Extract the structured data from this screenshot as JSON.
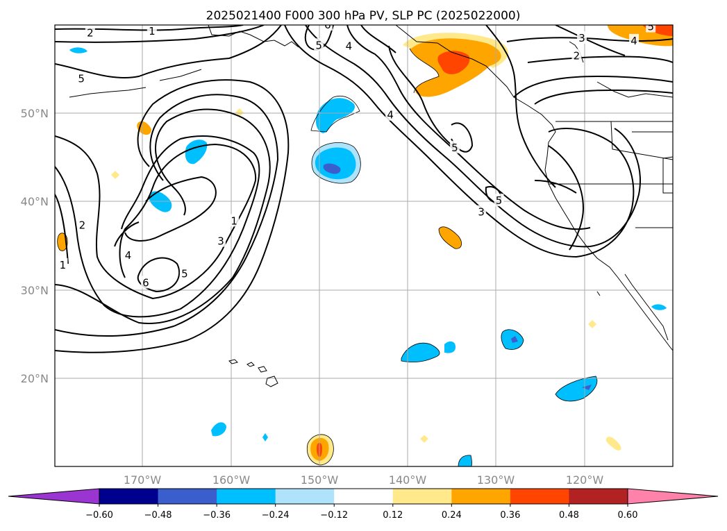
{
  "chart_data": {
    "type": "heatmap",
    "title": "2025021400 F000 300 hPa PV, SLP PC (2025022000)",
    "map": {
      "lon_range": [
        -180,
        -110
      ],
      "lat_range": [
        10,
        60
      ],
      "gridlines": true,
      "x_ticks": [
        {
          "lon": -170,
          "label": "170°W"
        },
        {
          "lon": -160,
          "label": "160°W"
        },
        {
          "lon": -150,
          "label": "150°W"
        },
        {
          "lon": -140,
          "label": "140°W"
        },
        {
          "lon": -130,
          "label": "130°W"
        },
        {
          "lon": -120,
          "label": "120°W"
        }
      ],
      "y_ticks": [
        {
          "lat": 20,
          "label": "20°N"
        },
        {
          "lat": 30,
          "label": "30°N"
        },
        {
          "lat": 40,
          "label": "40°N"
        },
        {
          "lat": 50,
          "label": "50°N"
        }
      ]
    },
    "colorbar": {
      "orientation": "horizontal",
      "extend": "both",
      "levels": [
        -0.6,
        -0.48,
        -0.36,
        -0.24,
        -0.12,
        0.12,
        0.24,
        0.36,
        0.48,
        0.6
      ],
      "tick_labels": [
        "−0.60",
        "−0.48",
        "−0.36",
        "−0.24",
        "−0.12",
        "0.12",
        "0.24",
        "0.36",
        "0.48",
        "0.60"
      ],
      "colors": [
        "#9a35d1",
        "#00008f",
        "#3a5fcd",
        "#00bfff",
        "#aee3fb",
        "#ffffff",
        "#ffe98a",
        "#ffa500",
        "#ff4500",
        "#b22222",
        "#ff82ab"
      ]
    },
    "slp_contour_labels": [
      {
        "text": "2",
        "lon": -176.0,
        "lat": 59.1
      },
      {
        "text": "1",
        "lon": -169.0,
        "lat": 59.3
      },
      {
        "text": "5",
        "lon": -177.0,
        "lat": 53.9
      },
      {
        "text": "2",
        "lon": -176.9,
        "lat": 37.3
      },
      {
        "text": "1",
        "lon": -179.1,
        "lat": 32.8
      },
      {
        "text": "4",
        "lon": -171.7,
        "lat": 33.9
      },
      {
        "text": "6",
        "lon": -169.7,
        "lat": 30.8
      },
      {
        "text": "5",
        "lon": -165.3,
        "lat": 31.8
      },
      {
        "text": "3",
        "lon": -161.2,
        "lat": 35.5
      },
      {
        "text": "1",
        "lon": -159.7,
        "lat": 37.8
      },
      {
        "text": "6",
        "lon": -149.1,
        "lat": 60.0
      },
      {
        "text": "5",
        "lon": -150.1,
        "lat": 57.7
      },
      {
        "text": "4",
        "lon": -146.7,
        "lat": 57.6
      },
      {
        "text": "4",
        "lon": -142.0,
        "lat": 49.8
      },
      {
        "text": "5",
        "lon": -134.7,
        "lat": 46.1
      },
      {
        "text": "3",
        "lon": -131.7,
        "lat": 38.8
      },
      {
        "text": "5",
        "lon": -129.7,
        "lat": 40.1
      },
      {
        "text": "3",
        "lon": -120.3,
        "lat": 58.5
      },
      {
        "text": "2",
        "lon": -120.9,
        "lat": 56.5
      },
      {
        "text": "4",
        "lon": -114.4,
        "lat": 58.2
      },
      {
        "text": "5",
        "lon": -112.5,
        "lat": 59.8
      }
    ],
    "pv_anomaly_patches": [
      {
        "sign": "positive",
        "peak": 0.42,
        "lon": -150.1,
        "lat": 12.0
      },
      {
        "sign": "positive",
        "peak": 0.4,
        "lon": -128.2,
        "lat": 55.5
      },
      {
        "sign": "positive",
        "peak": 0.28,
        "lon": -135.7,
        "lat": 34.6
      },
      {
        "sign": "positive",
        "peak": 0.28,
        "lon": -169.6,
        "lat": 48.6
      },
      {
        "sign": "positive",
        "peak": 0.38,
        "lon": -179.1,
        "lat": 35.4
      },
      {
        "sign": "positive",
        "peak": 0.36,
        "lon": -113.0,
        "lat": 59.0
      },
      {
        "sign": "positive",
        "peak": 0.16,
        "lon": -159.5,
        "lat": 50.0
      },
      {
        "sign": "positive",
        "peak": 0.16,
        "lon": -117.0,
        "lat": 13.0
      },
      {
        "sign": "positive",
        "peak": 0.16,
        "lon": -120.0,
        "lat": 26.0
      },
      {
        "sign": "negative",
        "peak": -0.42,
        "lon": -149.2,
        "lat": 44.0
      },
      {
        "sign": "negative",
        "peak": -0.3,
        "lon": -148.0,
        "lat": 50.0
      },
      {
        "sign": "negative",
        "peak": -0.32,
        "lon": -168.0,
        "lat": 39.8
      },
      {
        "sign": "negative",
        "peak": -0.3,
        "lon": -163.7,
        "lat": 45.2
      },
      {
        "sign": "negative",
        "peak": -0.32,
        "lon": -139.7,
        "lat": 22.5
      },
      {
        "sign": "negative",
        "peak": -0.4,
        "lon": -120.2,
        "lat": 18.6
      },
      {
        "sign": "negative",
        "peak": -0.4,
        "lon": -127.8,
        "lat": 24.5
      },
      {
        "sign": "negative",
        "peak": -0.3,
        "lon": -134.7,
        "lat": 23.4
      },
      {
        "sign": "negative",
        "peak": -0.3,
        "lon": -161.8,
        "lat": 14.5
      },
      {
        "sign": "negative",
        "peak": -0.24,
        "lon": -131.6,
        "lat": 10.6
      },
      {
        "sign": "negative",
        "peak": -0.16,
        "lon": -172.5,
        "lat": 56.9
      },
      {
        "sign": "negative",
        "peak": -0.16,
        "lon": -112.6,
        "lat": 27.8
      }
    ]
  }
}
